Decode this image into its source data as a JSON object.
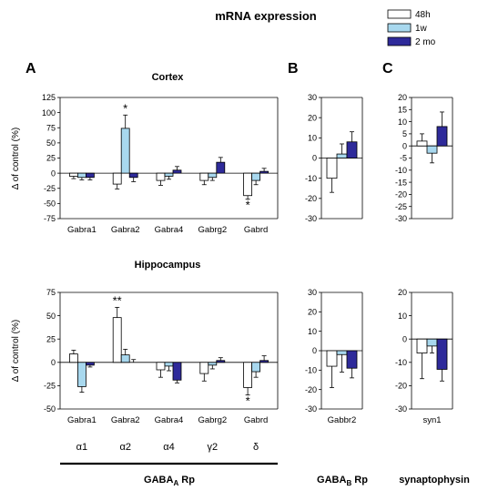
{
  "figure": {
    "title": "mRNA expression",
    "legend": [
      {
        "label": "48h",
        "color": "#ffffff"
      },
      {
        "label": "1w",
        "color": "#a8d8ee"
      },
      {
        "label": "2 mo",
        "color": "#2e2a9a"
      }
    ],
    "panel_letters": {
      "A": "A",
      "B": "B",
      "C": "C"
    },
    "row_titles": {
      "cortex": "Cortex",
      "hippocampus": "Hippocampus"
    },
    "bottom_labels": {
      "gabaa": {
        "main": "GABA",
        "sub": "A",
        "rest": " Rp"
      },
      "gabab": {
        "main": "GABA",
        "sub": "B",
        "rest": " Rp"
      },
      "syn": "synaptophysin"
    },
    "subunit_labels": [
      "α1",
      "α2",
      "α4",
      "γ2",
      "δ"
    ]
  },
  "chart_data": [
    {
      "id": "A_cortex",
      "type": "bar",
      "title": "Cortex",
      "ylabel": "Δ of control (%)",
      "ylim": [
        -75,
        125
      ],
      "yticks": [
        "125",
        "100",
        "75",
        "50",
        "25",
        "0",
        "-25",
        "-50",
        "-75"
      ],
      "categories": [
        "Gabra1",
        "Gabra2",
        "Gabra4",
        "Gabrg2",
        "Gabrd"
      ],
      "series": [
        {
          "name": "48h",
          "values": [
            -5,
            -18,
            -12,
            -12,
            -37
          ],
          "errors": [
            4,
            8,
            8,
            7,
            6
          ]
        },
        {
          "name": "1w",
          "values": [
            -7,
            74,
            -5,
            -7,
            -12
          ],
          "errors": [
            4,
            22,
            5,
            5,
            7
          ]
        },
        {
          "name": "2 mo",
          "values": [
            -7,
            -7,
            5,
            18,
            3
          ],
          "errors": [
            4,
            7,
            6,
            8,
            5
          ]
        }
      ],
      "annotations": [
        {
          "text": "*",
          "category": 1,
          "series": 1
        },
        {
          "text": "*",
          "category": 4,
          "series": 0
        }
      ]
    },
    {
      "id": "B_cortex",
      "type": "bar",
      "ylim": [
        -30,
        30
      ],
      "yticks": [
        "30",
        "20",
        "10",
        "0",
        "-10",
        "-20",
        "-30"
      ],
      "categories": [
        ""
      ],
      "series": [
        {
          "name": "48h",
          "values": [
            -10
          ],
          "errors": [
            7
          ]
        },
        {
          "name": "1w",
          "values": [
            2
          ],
          "errors": [
            5
          ]
        },
        {
          "name": "2 mo",
          "values": [
            8
          ],
          "errors": [
            5
          ]
        }
      ]
    },
    {
      "id": "C_cortex",
      "type": "bar",
      "ylim": [
        -30,
        20
      ],
      "yticks": [
        "20",
        "15",
        "10",
        "5",
        "0",
        "-5",
        "-10",
        "-15",
        "-20",
        "-25",
        "-30"
      ],
      "categories": [
        ""
      ],
      "series": [
        {
          "name": "48h",
          "values": [
            2
          ],
          "errors": [
            3
          ]
        },
        {
          "name": "1w",
          "values": [
            -3
          ],
          "errors": [
            4
          ]
        },
        {
          "name": "2 mo",
          "values": [
            8
          ],
          "errors": [
            6
          ]
        }
      ]
    },
    {
      "id": "A_hippocampus",
      "type": "bar",
      "title": "Hippocampus",
      "ylabel": "Δ of control (%)",
      "ylim": [
        -50,
        75
      ],
      "yticks": [
        "75",
        "50",
        "25",
        "0",
        "-25",
        "-50"
      ],
      "categories": [
        "Gabra1",
        "Gabra2",
        "Gabra4",
        "Gabrg2",
        "Gabrd"
      ],
      "series": [
        {
          "name": "48h",
          "values": [
            9,
            48,
            -8,
            -12,
            -27
          ],
          "errors": [
            4,
            11,
            8,
            8,
            8
          ]
        },
        {
          "name": "1w",
          "values": [
            -26,
            8,
            -4,
            -3,
            -10
          ],
          "errors": [
            6,
            6,
            5,
            4,
            6
          ]
        },
        {
          "name": "2 mo",
          "values": [
            -3,
            0,
            -19,
            2,
            2
          ],
          "errors": [
            2,
            3,
            3,
            3,
            5
          ]
        }
      ],
      "annotations": [
        {
          "text": "**",
          "category": 1,
          "series": 0
        },
        {
          "text": "*",
          "category": 4,
          "series": 0
        }
      ]
    },
    {
      "id": "B_hippocampus",
      "type": "bar",
      "ylim": [
        -30,
        30
      ],
      "yticks": [
        "30",
        "20",
        "10",
        "0",
        "-10",
        "-20",
        "-30"
      ],
      "categories": [
        "Gabbr2"
      ],
      "series": [
        {
          "name": "48h",
          "values": [
            -8
          ],
          "errors": [
            11
          ]
        },
        {
          "name": "1w",
          "values": [
            -2
          ],
          "errors": [
            9
          ]
        },
        {
          "name": "2 mo",
          "values": [
            -9
          ],
          "errors": [
            5
          ]
        }
      ]
    },
    {
      "id": "C_hippocampus",
      "type": "bar",
      "ylim": [
        -30,
        20
      ],
      "yticks": [
        "20",
        "10",
        "0",
        "-10",
        "-20",
        "-30"
      ],
      "categories": [
        "syn1"
      ],
      "series": [
        {
          "name": "48h",
          "values": [
            -6
          ],
          "errors": [
            11
          ]
        },
        {
          "name": "1w",
          "values": [
            -3
          ],
          "errors": [
            3
          ]
        },
        {
          "name": "2 mo",
          "values": [
            -13
          ],
          "errors": [
            5
          ]
        }
      ]
    }
  ]
}
